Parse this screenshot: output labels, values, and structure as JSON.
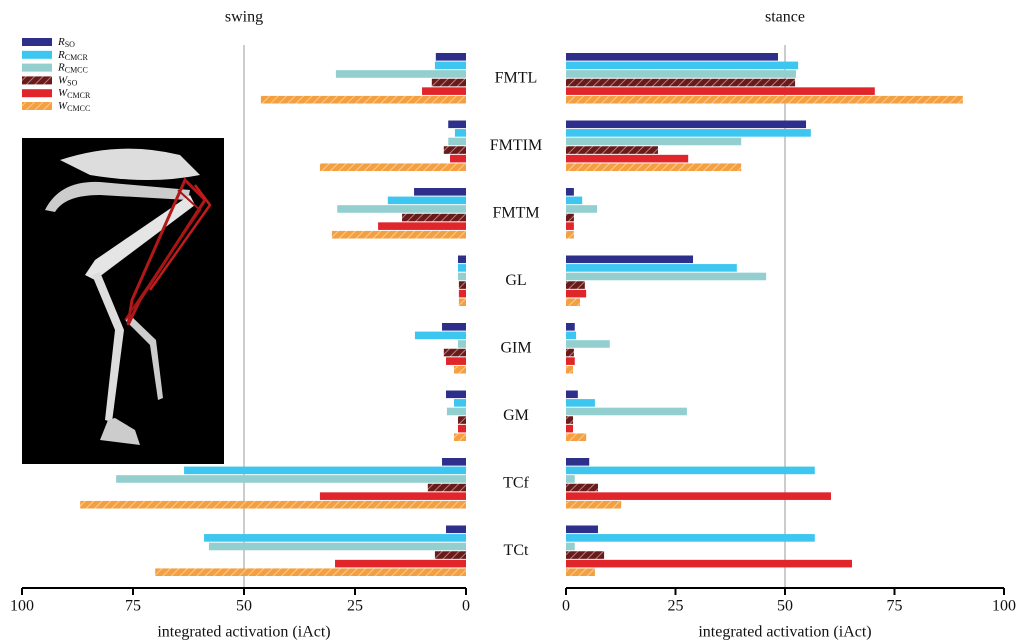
{
  "chart_data": [
    {
      "type": "bar",
      "orientation": "horizontal",
      "title": "swing",
      "xlabel": "integrated activation (iAct)",
      "categories": [
        "FMTL",
        "FMTIM",
        "FMTM",
        "GL",
        "GIM",
        "GM",
        "TCf",
        "TCt"
      ],
      "xlim": [
        100,
        0
      ],
      "xticks": [
        100,
        75,
        50,
        25,
        0
      ],
      "xgrid": [
        50
      ],
      "series": [
        {
          "name": "R",
          "subscript": "SO",
          "color": "#2e2f8a",
          "hatched": false,
          "values": [
            6.8,
            4,
            11.7,
            1.8,
            5.4,
            4.5,
            5.4,
            4.5
          ]
        },
        {
          "name": "R",
          "subscript": "CMCR",
          "color": "#3cc6f0",
          "hatched": false,
          "values": [
            7,
            2.5,
            17.6,
            1.8,
            11.5,
            2.7,
            63.5,
            59
          ]
        },
        {
          "name": "R",
          "subscript": "CMCC",
          "color": "#93cfcf",
          "hatched": false,
          "values": [
            29.3,
            4,
            29,
            1.8,
            1.8,
            4.3,
            78.8,
            57.9
          ]
        },
        {
          "name": "W",
          "subscript": "SO",
          "color": "#6b1a1a",
          "hatched": true,
          "values": [
            7.7,
            5,
            14.4,
            1.6,
            5,
            1.8,
            8.6,
            7
          ]
        },
        {
          "name": "W",
          "subscript": "CMCR",
          "color": "#e0252b",
          "hatched": false,
          "values": [
            9.9,
            3.6,
            19.8,
            1.6,
            4.5,
            1.8,
            32.9,
            29.5
          ]
        },
        {
          "name": "W",
          "subscript": "CMCC",
          "color": "#f4a040",
          "hatched": true,
          "values": [
            46.2,
            32.9,
            30.2,
            1.6,
            2.7,
            2.7,
            86.9,
            70
          ]
        }
      ]
    },
    {
      "type": "bar",
      "orientation": "horizontal",
      "title": "stance",
      "xlabel": "integrated activation (iAct)",
      "xlim": [
        0,
        100
      ],
      "xticks": [
        0,
        25,
        50,
        75,
        100
      ],
      "xgrid": [
        50
      ],
      "series": [
        {
          "color": "#2e2f8a",
          "hatched": false,
          "values": [
            48.4,
            54.8,
            1.8,
            29,
            2,
            2.7,
            5.3,
            7.3
          ]
        },
        {
          "color": "#3cc6f0",
          "hatched": false,
          "values": [
            53,
            55.9,
            3.7,
            39,
            2.3,
            6.6,
            56.8,
            56.8
          ]
        },
        {
          "color": "#93cfcf",
          "hatched": false,
          "values": [
            52.5,
            40,
            7.1,
            45.7,
            10,
            27.6,
            2,
            2
          ]
        },
        {
          "color": "#6b1a1a",
          "hatched": true,
          "values": [
            52.3,
            21,
            1.8,
            4.3,
            1.8,
            1.6,
            7.3,
            8.7
          ]
        },
        {
          "color": "#e0252b",
          "hatched": false,
          "values": [
            70.5,
            27.9,
            1.8,
            4.6,
            2,
            1.6,
            60.5,
            65.3
          ]
        },
        {
          "color": "#f4a040",
          "hatched": true,
          "values": [
            90.6,
            40,
            1.8,
            3.2,
            1.6,
            4.6,
            12.6,
            6.6
          ]
        }
      ]
    }
  ]
}
